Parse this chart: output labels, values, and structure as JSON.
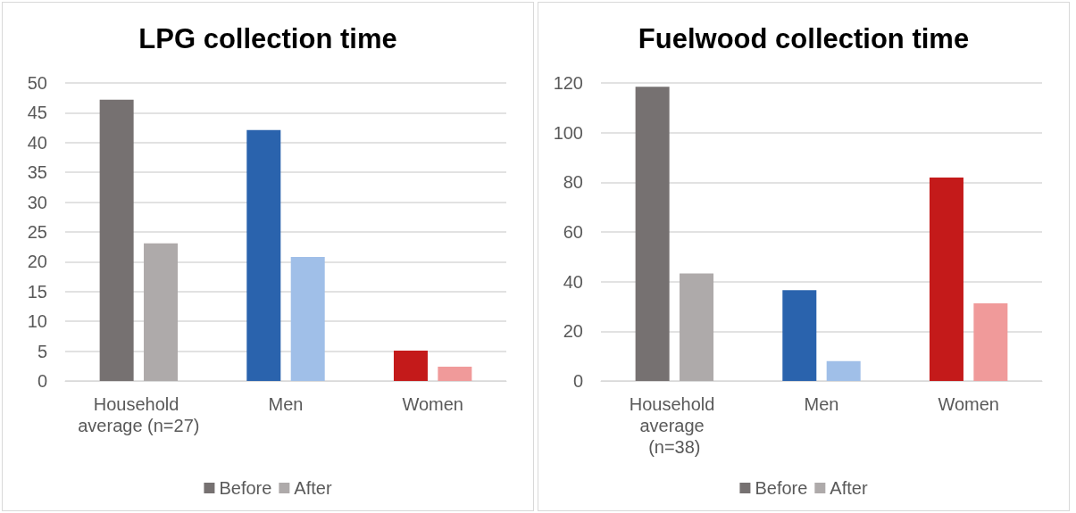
{
  "chart_data": [
    {
      "type": "bar",
      "title": "LPG collection time",
      "categories": [
        "Household average (n=27)",
        "Men",
        "Women"
      ],
      "series": [
        {
          "name": "Before",
          "color": "#767171",
          "colors": [
            "#767171",
            "#2a63ad",
            "#c41a1a"
          ],
          "values": [
            47.2,
            42.1,
            5.1
          ]
        },
        {
          "name": "After",
          "color": "#aeaaaa",
          "colors": [
            "#aeaaaa",
            "#a0bfe8",
            "#f09a9a"
          ],
          "values": [
            23.1,
            20.8,
            2.4
          ]
        }
      ],
      "ylim": [
        0,
        50
      ],
      "yticks": [
        0,
        5,
        10,
        15,
        20,
        25,
        30,
        35,
        40,
        45,
        50
      ],
      "grid": "y",
      "legend": "bottom"
    },
    {
      "type": "bar",
      "title": "Fuelwood collection time",
      "categories": [
        "Household average (n=38)",
        "Men",
        "Women"
      ],
      "series": [
        {
          "name": "Before",
          "color": "#767171",
          "colors": [
            "#767171",
            "#2a63ad",
            "#c41a1a"
          ],
          "values": [
            118.5,
            36.6,
            81.9
          ]
        },
        {
          "name": "After",
          "color": "#aeaaaa",
          "colors": [
            "#aeaaaa",
            "#a0bfe8",
            "#f09a9a"
          ],
          "values": [
            43.3,
            8.0,
            31.3
          ]
        }
      ],
      "ylim": [
        0,
        120
      ],
      "yticks": [
        0,
        20,
        40,
        60,
        80,
        100,
        120
      ],
      "grid": "y",
      "legend": "bottom"
    }
  ]
}
